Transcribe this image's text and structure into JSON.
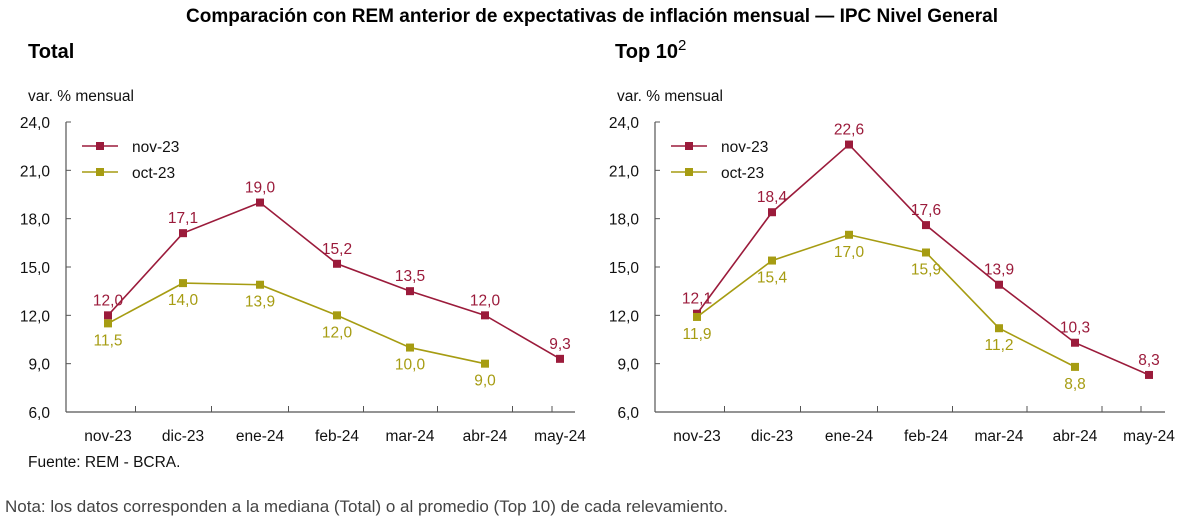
{
  "title": "Comparación con REM anterior de expectativas de inflación mensual — IPC Nivel General",
  "source": "Fuente: REM - BCRA.",
  "note": "Nota: los datos corresponden a la mediana (Total) o al promedio (Top 10) de cada relevamiento.",
  "colors": {
    "nov": "#9b1b3b",
    "oct": "#a69c12"
  },
  "chart_data": [
    {
      "type": "line",
      "title": "Total",
      "title_sup": "",
      "ylabel": "var. % mensual",
      "ylim": [
        6,
        24
      ],
      "yticks": [
        "6,0",
        "9,0",
        "12,0",
        "15,0",
        "18,0",
        "21,0",
        "24,0"
      ],
      "categories": [
        "nov-23",
        "dic-23",
        "ene-24",
        "feb-24",
        "mar-24",
        "abr-24",
        "may-24"
      ],
      "series": [
        {
          "name": "nov-23",
          "values": [
            12.0,
            17.1,
            19.0,
            15.2,
            13.5,
            12.0,
            9.3
          ],
          "labels": [
            "12,0",
            "17,1",
            "19,0",
            "15,2",
            "13,5",
            "12,0",
            "9,3"
          ]
        },
        {
          "name": "oct-23",
          "values": [
            11.5,
            14.0,
            13.9,
            12.0,
            10.0,
            9.0,
            null
          ],
          "labels": [
            "11,5",
            "14,0",
            "13,9",
            "12,0",
            "10,0",
            "9,0",
            ""
          ]
        }
      ],
      "legend": "top-left"
    },
    {
      "type": "line",
      "title": "Top 10",
      "title_sup": "2",
      "ylabel": "var. % mensual",
      "ylim": [
        6,
        24
      ],
      "yticks": [
        "6,0",
        "9,0",
        "12,0",
        "15,0",
        "18,0",
        "21,0",
        "24,0"
      ],
      "categories": [
        "nov-23",
        "dic-23",
        "ene-24",
        "feb-24",
        "mar-24",
        "abr-24",
        "may-24"
      ],
      "series": [
        {
          "name": "nov-23",
          "values": [
            12.1,
            18.4,
            22.6,
            17.6,
            13.9,
            10.3,
            8.3
          ],
          "labels": [
            "12,1",
            "18,4",
            "22,6",
            "17,6",
            "13,9",
            "10,3",
            "8,3"
          ]
        },
        {
          "name": "oct-23",
          "values": [
            11.9,
            15.4,
            17.0,
            15.9,
            11.2,
            8.8,
            null
          ],
          "labels": [
            "11,9",
            "15,4",
            "17,0",
            "15,9",
            "11,2",
            "8,8",
            ""
          ]
        }
      ],
      "legend": "top-left"
    }
  ]
}
